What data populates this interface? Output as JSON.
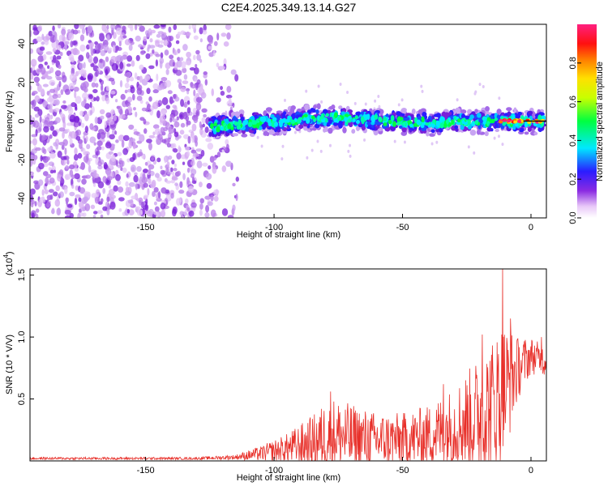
{
  "title": "C2E4.2025.349.13.14.G27",
  "colors": {
    "line": "#e8302a",
    "noise": "#8a2be2",
    "axis": "#000000"
  },
  "chart_data": [
    {
      "type": "heatmap",
      "xlabel": "Height of straight line (km)",
      "ylabel": "Frequency (Hz)",
      "xlim": [
        -195,
        6
      ],
      "ylim": [
        -50,
        50
      ],
      "x_ticks": [
        {
          "value": -150,
          "label": "-150"
        },
        {
          "value": -100,
          "label": "-100"
        },
        {
          "value": -50,
          "label": "-50"
        },
        {
          "value": 0,
          "label": "0"
        }
      ],
      "y_ticks": [
        {
          "value": 40,
          "label": "40"
        },
        {
          "value": 20,
          "label": "20"
        },
        {
          "value": 0,
          "label": "0"
        },
        {
          "value": -20,
          "label": "-20"
        },
        {
          "value": -40,
          "label": "-40"
        }
      ],
      "colorbar": {
        "label": "Normalized spectral amplitude",
        "range": [
          0,
          1
        ],
        "colormap": "rainbow (white-violet-blue-cyan-green-yellow-orange-red-magenta)",
        "ticks": [
          {
            "value": 0.0,
            "label": "0.0"
          },
          {
            "value": 0.2,
            "label": "0.2"
          },
          {
            "value": 0.4,
            "label": "0.4"
          },
          {
            "value": 0.6,
            "label": "0.6"
          },
          {
            "value": 0.8,
            "label": "0.8"
          }
        ]
      },
      "description_data": {
        "noise_region_x": [
          -195,
          -120
        ],
        "signal_band_x": [
          -125,
          6
        ],
        "signal_band_center_y": 0,
        "signal_band_halfwidth_y": 5,
        "signal_centerline": [
          {
            "x": -125,
            "y": -3
          },
          {
            "x": -110,
            "y": -1
          },
          {
            "x": -95,
            "y": 0
          },
          {
            "x": -85,
            "y": 2
          },
          {
            "x": -70,
            "y": 1
          },
          {
            "x": -55,
            "y": 0
          },
          {
            "x": -40,
            "y": -1
          },
          {
            "x": -25,
            "y": 0
          },
          {
            "x": -10,
            "y": 0
          },
          {
            "x": 0,
            "y": 0
          },
          {
            "x": 6,
            "y": 0
          }
        ],
        "peak_amplitude_region_x": [
          -12,
          6
        ]
      }
    },
    {
      "type": "line",
      "xlabel": "Height of straight line (km)",
      "ylabel": "SNR (10 * V/V)",
      "y_multiplier": "(x10",
      "y_multiplier_exp": "4",
      "y_multiplier_close": ")",
      "xlim": [
        -195,
        6
      ],
      "ylim": [
        0,
        1.55
      ],
      "x_ticks": [
        {
          "value": -150,
          "label": "-150"
        },
        {
          "value": -100,
          "label": "-100"
        },
        {
          "value": -50,
          "label": "-50"
        },
        {
          "value": 0,
          "label": "0"
        }
      ],
      "y_ticks": [
        {
          "value": 1.5,
          "label": "1.5"
        },
        {
          "value": 1.0,
          "label": "1.0"
        },
        {
          "value": 0.5,
          "label": "0.5"
        }
      ],
      "series": [
        {
          "envelope": [
            {
              "x": -195,
              "base": 0.02,
              "amp": 0.01
            },
            {
              "x": -130,
              "base": 0.02,
              "amp": 0.01
            },
            {
              "x": -115,
              "base": 0.03,
              "amp": 0.02
            },
            {
              "x": -105,
              "base": 0.06,
              "amp": 0.06
            },
            {
              "x": -95,
              "base": 0.1,
              "amp": 0.12
            },
            {
              "x": -85,
              "base": 0.15,
              "amp": 0.22
            },
            {
              "x": -78,
              "base": 0.22,
              "amp": 0.3
            },
            {
              "x": -70,
              "base": 0.18,
              "amp": 0.28
            },
            {
              "x": -60,
              "base": 0.17,
              "amp": 0.22
            },
            {
              "x": -50,
              "base": 0.17,
              "amp": 0.22
            },
            {
              "x": -40,
              "base": 0.2,
              "amp": 0.25
            },
            {
              "x": -30,
              "base": 0.28,
              "amp": 0.32
            },
            {
              "x": -22,
              "base": 0.35,
              "amp": 0.45
            },
            {
              "x": -15,
              "base": 0.45,
              "amp": 0.55
            },
            {
              "x": -11,
              "base": 0.55,
              "amp": 0.6
            },
            {
              "x": -5,
              "base": 0.75,
              "amp": 0.25
            },
            {
              "x": 0,
              "base": 0.85,
              "amp": 0.15
            },
            {
              "x": 6,
              "base": 0.8,
              "amp": 0.12
            }
          ],
          "spikes": [
            {
              "x": -11,
              "y": 1.57
            },
            {
              "x": -8,
              "y": 1.15
            },
            {
              "x": -19,
              "y": 1.02
            },
            {
              "x": -78,
              "y": 0.56
            },
            {
              "x": -34,
              "y": 0.62
            },
            {
              "x": 4,
              "y": 1.0
            }
          ]
        }
      ]
    }
  ]
}
